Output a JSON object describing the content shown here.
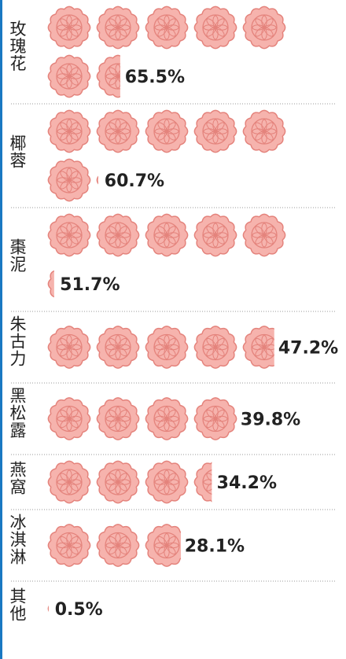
{
  "chart_data": {
    "type": "pictogram",
    "categories": [
      "玫瑰花",
      "椰蓉",
      "棗泥",
      "朱古力",
      "黑松露",
      "燕窩",
      "冰淇淋",
      "其他"
    ],
    "values": [
      65.5,
      60.7,
      51.7,
      47.2,
      39.8,
      34.2,
      28.1,
      0.5
    ],
    "value_labels": [
      "65.5%",
      "60.7%",
      "51.7%",
      "47.2%",
      "39.8%",
      "34.2%",
      "28.1%",
      "0.5%"
    ],
    "unit": 10,
    "icons_per_line": 5,
    "color": "#f6b3ad",
    "outline_color": "#e4837c"
  }
}
